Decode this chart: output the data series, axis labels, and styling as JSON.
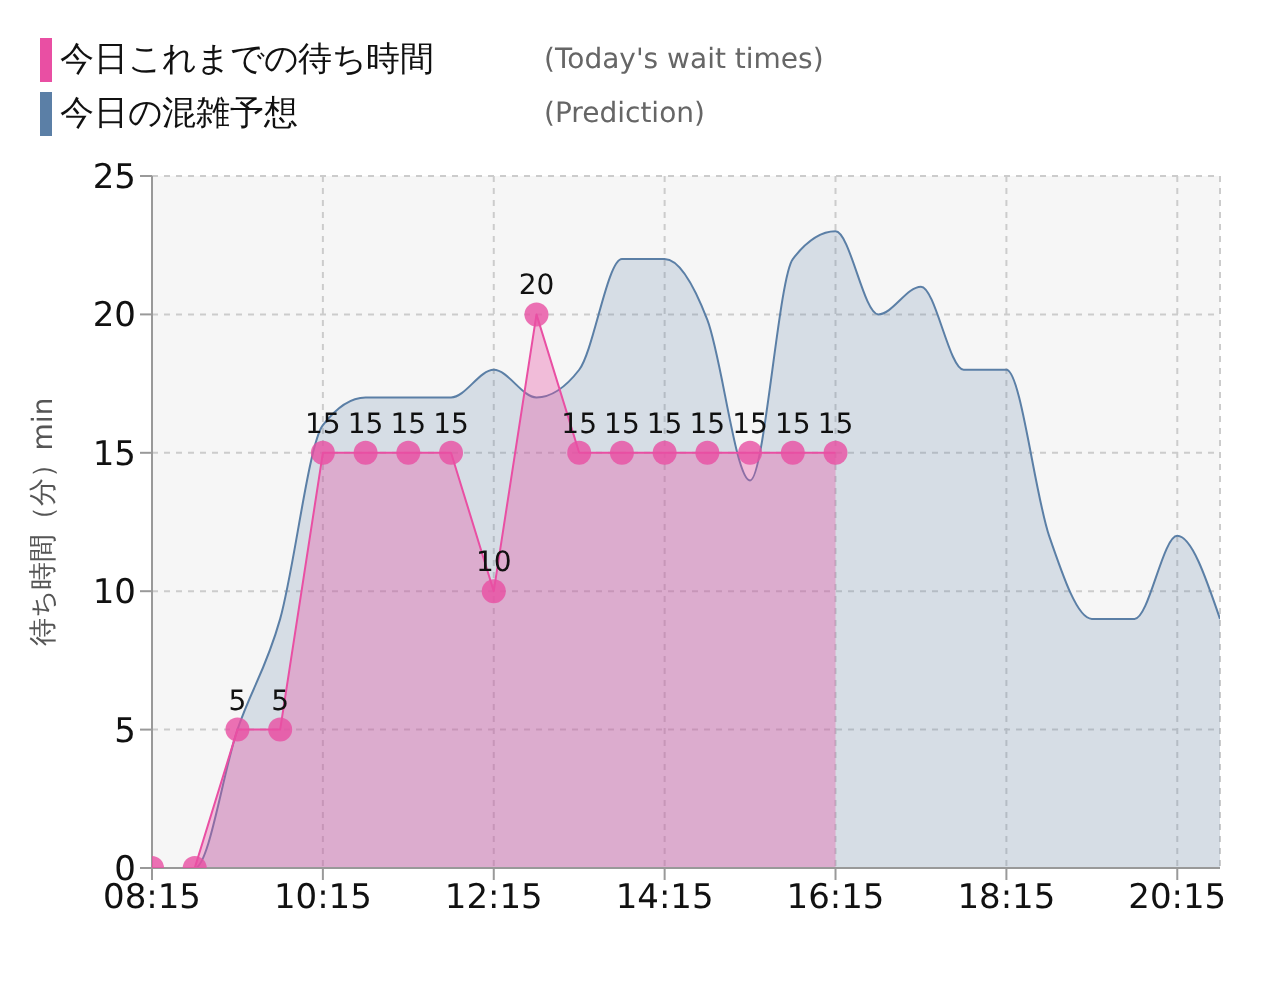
{
  "chart_data": {
    "type": "area",
    "ylabel": "待ち時間（分）min",
    "annotations": [
      "(Prediction)",
      "(Today's wait times)"
    ],
    "x": [
      8.25,
      8.75,
      9.25,
      9.75,
      10.25,
      10.75,
      11.25,
      11.75,
      12.25,
      12.75,
      13.25,
      13.75,
      14.25,
      14.75,
      15.25,
      15.75,
      16.25,
      16.75,
      17.25,
      17.75,
      18.25,
      18.75,
      19.25,
      19.75,
      20.25,
      20.75
    ],
    "series": [
      {
        "name": "今日の混雑予想",
        "color": "#5b7fa6",
        "marker": "none",
        "values": [
          0,
          0,
          5,
          9,
          16,
          17,
          17,
          17,
          18,
          17,
          18,
          22,
          22,
          19.8,
          14,
          22,
          23,
          20,
          21,
          18,
          18,
          12,
          9,
          9,
          12,
          9
        ]
      },
      {
        "name": "今日これまでの待ち時間",
        "color": "#e94fa3",
        "marker": "circle",
        "values": [
          0,
          0,
          5,
          5,
          15,
          15,
          15,
          15,
          10,
          20,
          15,
          15,
          15,
          15,
          15,
          15,
          15,
          null,
          null,
          null,
          null,
          null,
          null,
          null,
          null,
          null
        ],
        "value_labels": [
          null,
          null,
          "5",
          "5",
          "15",
          "15",
          "15",
          "15",
          "10",
          "20",
          "15",
          "15",
          "15",
          "15",
          "15",
          "15",
          "15",
          null,
          null,
          null,
          null,
          null,
          null,
          null,
          null,
          null
        ]
      }
    ],
    "xlim": [
      8.25,
      20.75
    ],
    "xticks": [
      {
        "value": 8.25,
        "label": "08:15"
      },
      {
        "value": 10.25,
        "label": "10:15"
      },
      {
        "value": 12.25,
        "label": "12:15"
      },
      {
        "value": 14.25,
        "label": "14:15"
      },
      {
        "value": 16.25,
        "label": "16:15"
      },
      {
        "value": 18.25,
        "label": "18:15"
      },
      {
        "value": 20.25,
        "label": "20:15"
      }
    ],
    "ylim": [
      0,
      25
    ],
    "yticks": [
      0,
      5,
      10,
      15,
      20,
      25
    ],
    "grid": true,
    "legend": "top left"
  }
}
